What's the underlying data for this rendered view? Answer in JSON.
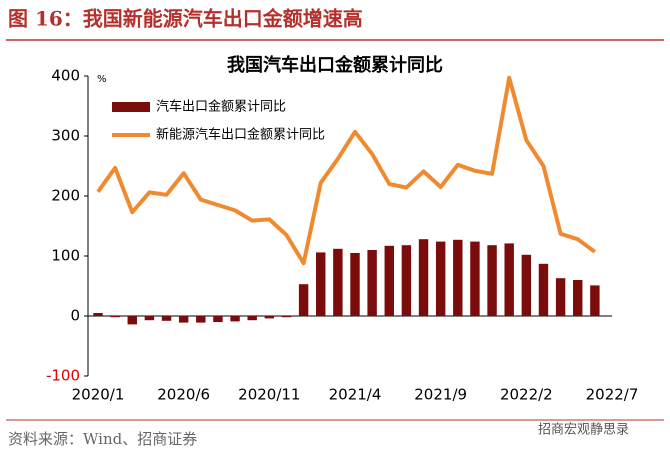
{
  "header": "图 16：我国新能源汽车出口金额增速高",
  "source": "资料来源：Wind、招商证券",
  "watermark": "招商宏观静思录",
  "chart_data": {
    "type": "bar-line",
    "title": "我国汽车出口金额累计同比",
    "unit": "%",
    "categories": [
      "2020/1",
      null,
      null,
      null,
      null,
      "2020/6",
      null,
      null,
      null,
      null,
      "2020/11",
      null,
      null,
      null,
      null,
      "2021/4",
      null,
      null,
      null,
      null,
      "2021/9",
      null,
      null,
      null,
      null,
      "2022/2",
      null,
      null,
      null,
      null,
      "2022/7"
    ],
    "series": [
      {
        "name": "汽车出口金额累计同比",
        "type": "bar",
        "color": "#7a0c0c",
        "values": [
          5,
          -2,
          -14,
          -7,
          -8,
          -11,
          -11,
          -10,
          -9,
          -7,
          -4,
          -2,
          53,
          106,
          112,
          105,
          110,
          117,
          118,
          128,
          124,
          127,
          124,
          118,
          121,
          102,
          87,
          63,
          60,
          51,
          null
        ]
      },
      {
        "name": "新能源汽车出口金额累计同比",
        "type": "line",
        "color": "#f08a30",
        "values": [
          207,
          247,
          173,
          206,
          202,
          238,
          194,
          185,
          176,
          159,
          161,
          135,
          88,
          222,
          262,
          307,
          270,
          220,
          214,
          241,
          215,
          252,
          242,
          237,
          397,
          293,
          250,
          137,
          128,
          107,
          null
        ]
      }
    ],
    "ylim": [
      -100,
      400
    ],
    "yticks": [
      -100,
      0,
      100,
      200,
      300,
      400
    ],
    "legend": "upper-left"
  }
}
